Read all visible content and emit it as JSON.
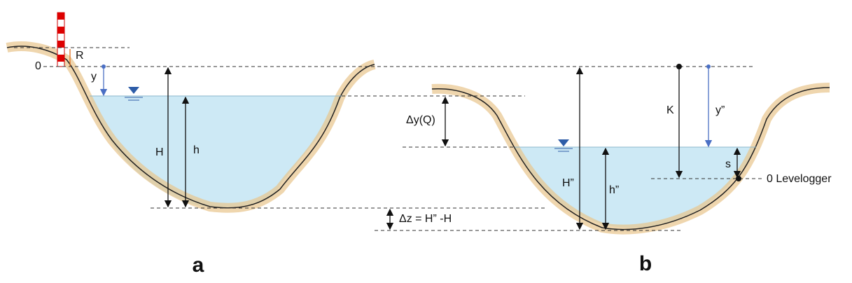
{
  "panel_a": {
    "label": "a",
    "zero_label": "0",
    "r_label": "R",
    "y_label": "y",
    "h_total_label": "H",
    "h_label": "h"
  },
  "panel_b": {
    "label": "b",
    "dy_label": "Δy(Q)",
    "k_label": "K",
    "y2_label": "y”",
    "h_total_label": "H”",
    "h_label": "h”",
    "s_label": "s",
    "levelogger_label": "0 Levelogger",
    "dz_label": "Δz = H” -H"
  }
}
